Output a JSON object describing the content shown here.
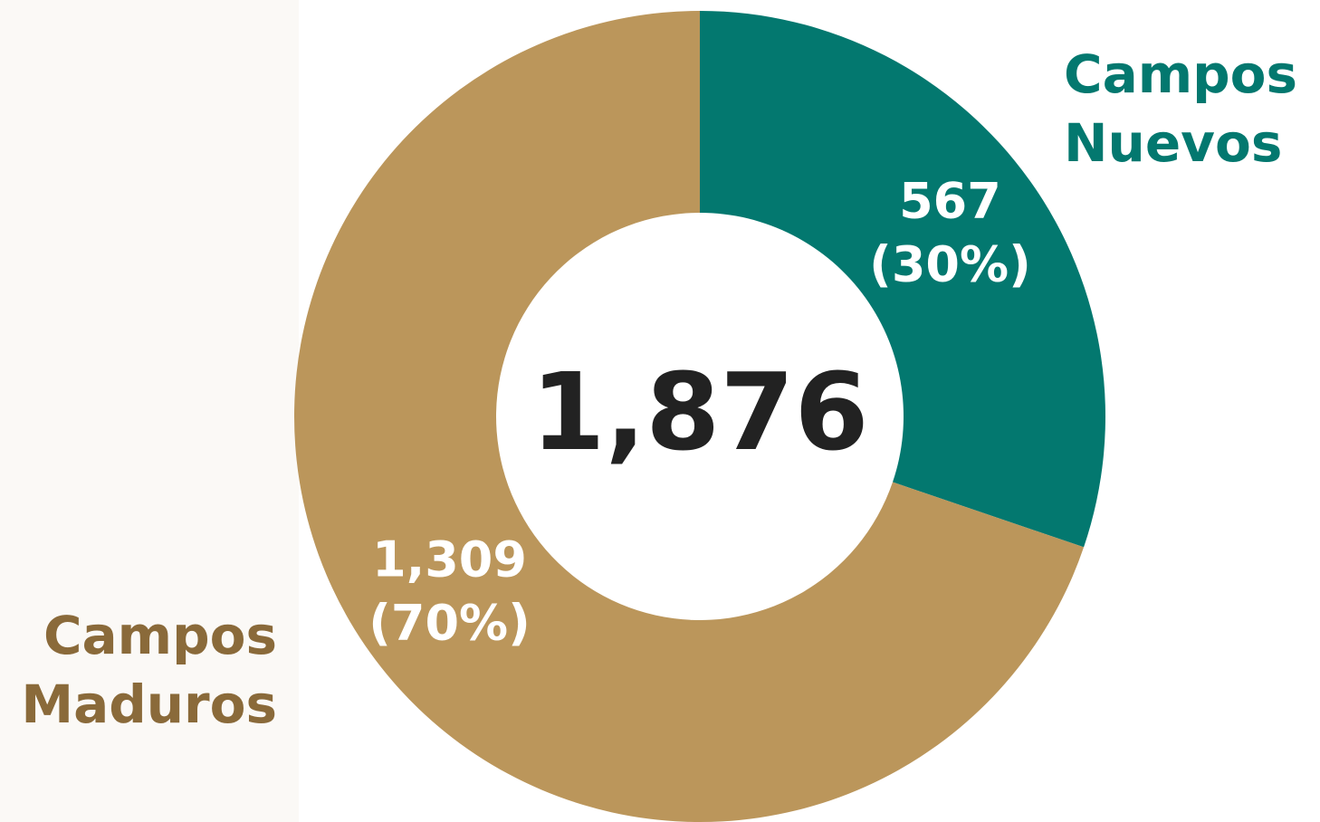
{
  "chart_data": {
    "type": "donut",
    "categories": [
      "Campos Nuevos",
      "Campos Maduros"
    ],
    "category_lines": [
      [
        "Campos",
        "Nuevos"
      ],
      [
        "Campos",
        "Maduros"
      ]
    ],
    "values": [
      567,
      1309
    ],
    "value_labels": [
      "567",
      "1,309"
    ],
    "percent_labels": [
      "(30%)",
      "(70%)"
    ],
    "colors": [
      "#03786f",
      "#bb965b"
    ],
    "label_colors": [
      "#03786f",
      "#8a6a3a"
    ],
    "total": 1876,
    "total_label": "1,876"
  }
}
